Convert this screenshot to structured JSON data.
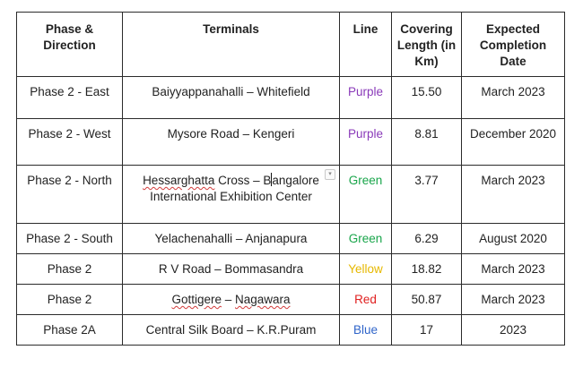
{
  "colors": {
    "purple": "#8a3ab9",
    "green": "#18a54a",
    "yellow": "#e6b800",
    "red": "#e02020",
    "blue": "#2f64c9",
    "border": "#2b2b2b"
  },
  "table": {
    "headers": {
      "phase": "Phase & Direction",
      "terminals": "Terminals",
      "line": "Line",
      "length": "Covering Length (in Km)",
      "date": "Expected Completion Date"
    },
    "rows": [
      {
        "phase": "Phase 2 - East",
        "terminals": "Baiyyappanahalli – Whitefield",
        "line": "Purple",
        "length": "15.50",
        "date": "March 2023"
      },
      {
        "phase": "Phase 2 - West",
        "terminals": "Mysore Road – Kengeri",
        "line": "Purple",
        "length": "8.81",
        "date": "December 2020"
      },
      {
        "phase": "Phase 2 - North",
        "terminals_a": "Hessarghatta",
        "terminals_b": " Cross – B",
        "terminals_c": "angalore International Exhibition Center",
        "line": "Green",
        "length": "3.77",
        "date": "March 2023"
      },
      {
        "phase": "Phase 2 - South",
        "terminals": "Yelachenahalli – Anjanapura",
        "line": "Green",
        "length": "6.29",
        "date": "August 2020"
      },
      {
        "phase": "Phase 2",
        "terminals": "R V Road – Bommasandra",
        "line": "Yellow",
        "length": "18.82",
        "date": "March 2023"
      },
      {
        "phase": "Phase 2",
        "terminals_a": "Gottigere",
        "terminals_b": " – ",
        "terminals_c": "Nagawara",
        "line": "Red",
        "length": "50.87",
        "date": "March 2023"
      },
      {
        "phase": "Phase 2A",
        "terminals": "Central Silk Board – K.R.Puram",
        "line": "Blue",
        "length": "17",
        "date": "2023"
      }
    ]
  }
}
